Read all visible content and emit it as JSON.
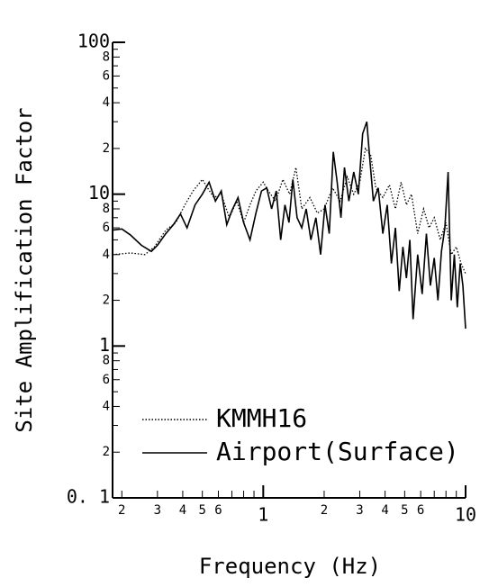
{
  "chart_data": {
    "type": "line",
    "xlabel": "Frequency (Hz)",
    "ylabel": "Site Amplification Factor",
    "log_x": true,
    "log_y": true,
    "legend": "lower right",
    "xlim": [
      0.18,
      10
    ],
    "ylim": [
      0.1,
      100
    ],
    "xticks": [
      {
        "value": 0.2,
        "label": "2"
      },
      {
        "value": 0.3,
        "label": "3"
      },
      {
        "value": 0.4,
        "label": "4"
      },
      {
        "value": 0.5,
        "label": "5"
      },
      {
        "value": 0.6,
        "label": "6"
      },
      1,
      {
        "value": 2,
        "label": "2"
      },
      {
        "value": 3,
        "label": "3"
      },
      {
        "value": 4,
        "label": "4"
      },
      {
        "value": 5,
        "label": "5"
      },
      {
        "value": 6,
        "label": "6"
      },
      10
    ],
    "xticks_minor": [
      0.7,
      0.8,
      0.9,
      7,
      8,
      9
    ],
    "yticks": [
      {
        "value": 0.1,
        "label": "0. 1"
      },
      {
        "value": 0.2,
        "label": "2"
      },
      {
        "value": 0.4,
        "label": "4"
      },
      {
        "value": 0.6,
        "label": "6"
      },
      {
        "value": 0.8,
        "label": "8"
      },
      1,
      {
        "value": 2,
        "label": "2"
      },
      {
        "value": 4,
        "label": "4"
      },
      {
        "value": 6,
        "label": "6"
      },
      {
        "value": 8,
        "label": "8"
      },
      10,
      {
        "value": 20,
        "label": "2"
      },
      {
        "value": 40,
        "label": "4"
      },
      {
        "value": 60,
        "label": "6"
      },
      {
        "value": 80,
        "label": "8"
      },
      100
    ],
    "yticks_minor": [
      0.3,
      0.5,
      0.7,
      0.9,
      3,
      5,
      7,
      9,
      30,
      50,
      70,
      90
    ],
    "series": [
      {
        "name": "KMMH16",
        "color": "#000000",
        "dash": "dotted",
        "x": [
          0.18,
          0.22,
          0.26,
          0.29,
          0.33,
          0.37,
          0.41,
          0.45,
          0.5,
          0.53,
          0.57,
          0.62,
          0.68,
          0.74,
          0.8,
          0.86,
          0.92,
          1.0,
          1.06,
          1.15,
          1.25,
          1.35,
          1.45,
          1.55,
          1.7,
          1.85,
          2.0,
          2.2,
          2.4,
          2.6,
          2.8,
          3.0,
          3.2,
          3.4,
          3.6,
          3.9,
          4.2,
          4.5,
          4.8,
          5.1,
          5.4,
          5.8,
          6.2,
          6.6,
          7.0,
          7.5,
          8.0,
          8.5,
          9.0,
          9.5,
          10.0
        ],
        "values": [
          4.0,
          4.1,
          4.0,
          4.5,
          5.8,
          6.5,
          8.5,
          10.5,
          12.5,
          11.0,
          9.5,
          10.0,
          7.0,
          9.0,
          6.5,
          8.5,
          10.5,
          12.0,
          10.5,
          9.0,
          12.5,
          10.0,
          15.0,
          8.0,
          9.5,
          7.5,
          8.0,
          11.0,
          9.0,
          13.0,
          10.0,
          12.0,
          20.0,
          18.0,
          11.0,
          9.5,
          11.5,
          8.0,
          12.0,
          8.5,
          10.0,
          5.5,
          8.0,
          6.0,
          7.0,
          5.0,
          6.5,
          4.0,
          4.5,
          3.5,
          3.0
        ]
      },
      {
        "name": "Airport(Surface)",
        "color": "#000000",
        "dash": "solid",
        "x": [
          0.18,
          0.2,
          0.22,
          0.25,
          0.28,
          0.3,
          0.33,
          0.36,
          0.39,
          0.42,
          0.46,
          0.5,
          0.54,
          0.58,
          0.62,
          0.66,
          0.7,
          0.75,
          0.8,
          0.86,
          0.92,
          0.98,
          1.04,
          1.1,
          1.16,
          1.22,
          1.28,
          1.34,
          1.4,
          1.47,
          1.55,
          1.63,
          1.72,
          1.82,
          1.92,
          2.02,
          2.12,
          2.22,
          2.32,
          2.42,
          2.52,
          2.65,
          2.8,
          2.95,
          3.1,
          3.25,
          3.35,
          3.5,
          3.7,
          3.9,
          4.1,
          4.3,
          4.5,
          4.7,
          4.9,
          5.1,
          5.3,
          5.5,
          5.8,
          6.1,
          6.4,
          6.7,
          7.0,
          7.3,
          7.6,
          7.9,
          8.2,
          8.5,
          8.8,
          9.1,
          9.4,
          9.7,
          10.0
        ],
        "values": [
          5.8,
          5.9,
          5.4,
          4.6,
          4.2,
          4.6,
          5.5,
          6.3,
          7.4,
          6.0,
          8.5,
          10.0,
          12.0,
          9.0,
          10.5,
          6.3,
          7.8,
          9.5,
          6.5,
          5.0,
          7.5,
          10.5,
          11.0,
          8.0,
          10.5,
          5.0,
          8.5,
          6.5,
          12.5,
          7.0,
          6.0,
          8.0,
          5.0,
          7.0,
          4.0,
          8.5,
          5.5,
          19.0,
          12.0,
          7.0,
          15.0,
          9.0,
          14.0,
          10.0,
          25.0,
          30.0,
          18.0,
          9.0,
          11.0,
          5.5,
          8.5,
          3.5,
          6.0,
          2.3,
          4.5,
          2.8,
          5.0,
          1.5,
          4.0,
          2.2,
          5.5,
          2.5,
          3.8,
          2.0,
          4.2,
          6.0,
          14.0,
          2.0,
          4.0,
          1.8,
          3.5,
          2.5,
          1.3
        ]
      }
    ]
  }
}
